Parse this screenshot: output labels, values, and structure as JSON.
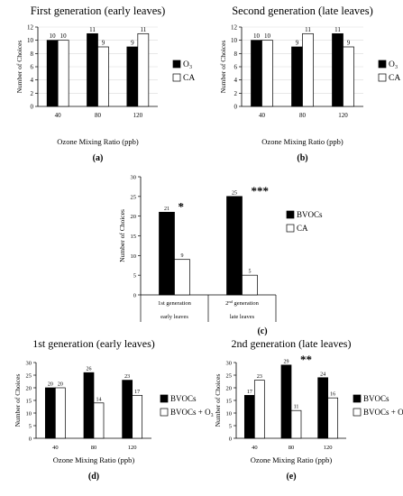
{
  "figure": {
    "panels": [
      "(a)",
      "(b)",
      "(c)",
      "(d)",
      "(e)"
    ]
  },
  "colors": {
    "series_a": "#000000",
    "series_b": "#ffffff",
    "axis": "#000000",
    "grid": "#d9d9d9"
  },
  "chart_data": [
    {
      "id": "a",
      "type": "bar",
      "title": "First generation (early leaves)",
      "panel_label": "(a)",
      "xlabel": "Ozone Mixing Ratio (ppb)",
      "ylabel": "Number of Choices",
      "categories": [
        "40",
        "80",
        "120"
      ],
      "series": [
        {
          "name": "O₃",
          "values": [
            10,
            11,
            9
          ]
        },
        {
          "name": "CA",
          "values": [
            10,
            9,
            11
          ]
        }
      ],
      "ylim": [
        0,
        12
      ],
      "yticks": [
        "0",
        "2",
        "4",
        "6",
        "8",
        "10",
        "12"
      ],
      "grid": true,
      "legend": "right",
      "annotations": []
    },
    {
      "id": "b",
      "type": "bar",
      "title": "Second generation (late leaves)",
      "panel_label": "(b)",
      "xlabel": "Ozone Mixing Ratio (ppb)",
      "ylabel": "Number of Choices",
      "categories": [
        "40",
        "80",
        "120"
      ],
      "series": [
        {
          "name": "O₃",
          "values": [
            10,
            9,
            11
          ]
        },
        {
          "name": "CA",
          "values": [
            10,
            11,
            9
          ]
        }
      ],
      "ylim": [
        0,
        12
      ],
      "yticks": [
        "0",
        "2",
        "4",
        "6",
        "8",
        "10",
        "12"
      ],
      "grid": true,
      "legend": "right",
      "annotations": []
    },
    {
      "id": "c",
      "type": "bar",
      "title": "",
      "panel_label": "(c)",
      "xlabel": "",
      "ylabel": "Number of Choices",
      "categories": [
        "1st generation",
        "2nd generation"
      ],
      "category_sublabels": [
        "early leaves",
        "late leaves"
      ],
      "series": [
        {
          "name": "BVOCs",
          "values": [
            21,
            25
          ]
        },
        {
          "name": "CA",
          "values": [
            9,
            5
          ]
        }
      ],
      "ylim": [
        0,
        30
      ],
      "yticks": [
        "0",
        "5",
        "10",
        "15",
        "20",
        "25",
        "30"
      ],
      "grid": false,
      "legend": "right",
      "annotations": [
        {
          "category": 0,
          "text": "*"
        },
        {
          "category": 1,
          "text": "***"
        }
      ]
    },
    {
      "id": "d",
      "type": "bar",
      "title": "1st generation (early leaves)",
      "panel_label": "(d)",
      "xlabel": "Ozone Mixing Ratio (ppb)",
      "ylabel": "Number of Choices",
      "categories": [
        "40",
        "80",
        "120"
      ],
      "series": [
        {
          "name": "BVOCs",
          "values": [
            20,
            26,
            23
          ]
        },
        {
          "name": "BVOCs + O₃",
          "values": [
            20,
            14,
            17
          ]
        }
      ],
      "ylim": [
        0,
        30
      ],
      "yticks": [
        "0",
        "5",
        "10",
        "15",
        "20",
        "25",
        "30"
      ],
      "grid": false,
      "legend": "right",
      "annotations": []
    },
    {
      "id": "e",
      "type": "bar",
      "title": "2nd generation (late leaves)",
      "panel_label": "(e)",
      "xlabel": "Ozone Mixing Ratio (ppb)",
      "ylabel": "Number of Choices",
      "categories": [
        "40",
        "80",
        "120"
      ],
      "series": [
        {
          "name": "BVOCs",
          "values": [
            17,
            29,
            24
          ]
        },
        {
          "name": "BVOCs + O₃",
          "values": [
            23,
            11,
            16
          ]
        }
      ],
      "ylim": [
        0,
        30
      ],
      "yticks": [
        "0",
        "5",
        "10",
        "15",
        "20",
        "25",
        "30"
      ],
      "grid": false,
      "legend": "right",
      "annotations": [
        {
          "category": 1,
          "text": "**"
        }
      ]
    }
  ]
}
